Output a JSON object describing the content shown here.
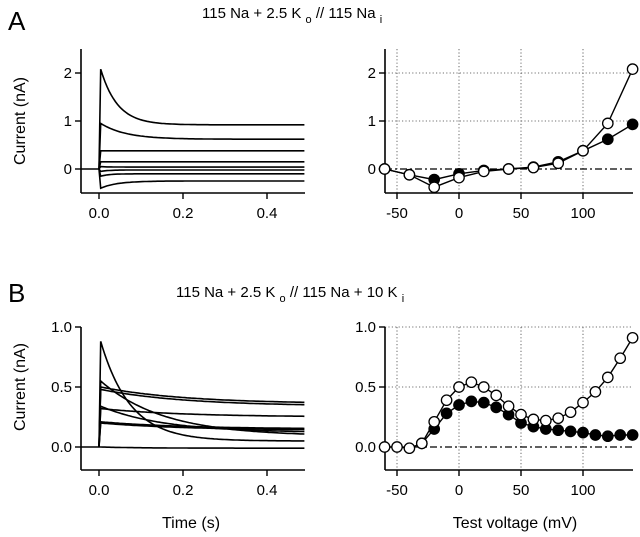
{
  "figure": {
    "panel_A": {
      "letter": "A",
      "title_parts": {
        "pre": "115 Na + 2.5 K",
        "sub1": "o",
        "mid": " // 115 Na",
        "sub2": "i"
      }
    },
    "panel_B": {
      "letter": "B",
      "title_parts": {
        "pre": "115 Na + 2.5 K",
        "sub1": "o",
        "mid": " // 115 Na + 10 K",
        "sub2": "i"
      }
    },
    "colors": {
      "ink": "#000000",
      "grid": "#555555",
      "open_fill": "#ffffff"
    }
  },
  "chart_data": [
    {
      "id": "A-left",
      "type": "line",
      "title": "",
      "xlabel": "",
      "ylabel": "Current (nA)",
      "xlim": [
        -0.04,
        0.49
      ],
      "ylim": [
        -0.5,
        2.5
      ],
      "xticks": [
        "0.0",
        "0.2",
        "0.4"
      ],
      "xtick_values": [
        0,
        0.2,
        0.4
      ],
      "yticks": [
        "0",
        "1",
        "2"
      ],
      "ytick_values": [
        0,
        1,
        2
      ],
      "grid": false,
      "description": "Current traces vs time (s) at several test voltages",
      "series": [
        {
          "name": "trace-1",
          "peak": 2.08,
          "steady": 0.92,
          "tau": 0.04
        },
        {
          "name": "trace-2",
          "peak": 0.95,
          "steady": 0.62,
          "tau": 0.06
        },
        {
          "name": "trace-3",
          "peak": 0.38,
          "steady": 0.38,
          "tau": 0.02
        },
        {
          "name": "trace-4",
          "peak": 0.15,
          "steady": 0.15,
          "tau": 0.02
        },
        {
          "name": "trace-5",
          "peak": 0.05,
          "steady": 0.04,
          "tau": 0.02
        },
        {
          "name": "trace-6",
          "peak": -0.05,
          "steady": -0.02,
          "tau": 0.02
        },
        {
          "name": "trace-7",
          "peak": -0.15,
          "steady": -0.1,
          "tau": 0.02
        },
        {
          "name": "trace-8",
          "peak": -0.4,
          "steady": -0.25,
          "tau": 0.04
        }
      ]
    },
    {
      "id": "A-right",
      "type": "line",
      "title": "",
      "xlabel": "",
      "ylabel": "",
      "xlim": [
        -60,
        140
      ],
      "ylim": [
        -0.5,
        2.5
      ],
      "xticks": [
        "-50",
        "0",
        "50",
        "100"
      ],
      "xtick_values": [
        -50,
        0,
        50,
        100
      ],
      "yticks": [
        "0",
        "1",
        "2"
      ],
      "ytick_values": [
        0,
        1,
        2
      ],
      "grid": true,
      "zero_line": "dash-dot",
      "series": [
        {
          "name": "filled",
          "marker": "filled-circle",
          "x": [
            -60,
            -40,
            -20,
            0,
            20,
            40,
            60,
            80,
            100,
            120,
            140
          ],
          "y": [
            0.0,
            -0.12,
            -0.22,
            -0.1,
            -0.03,
            0.0,
            0.04,
            0.15,
            0.38,
            0.62,
            0.93
          ]
        },
        {
          "name": "open",
          "marker": "open-circle",
          "x": [
            -60,
            -40,
            -20,
            0,
            20,
            40,
            60,
            80,
            100,
            120,
            140
          ],
          "y": [
            0.0,
            -0.12,
            -0.38,
            -0.18,
            -0.05,
            0.0,
            0.03,
            0.12,
            0.38,
            0.95,
            2.08
          ]
        }
      ]
    },
    {
      "id": "B-left",
      "type": "line",
      "title": "",
      "xlabel": "Time (s)",
      "ylabel": "Current (nA)",
      "xlim": [
        -0.04,
        0.49
      ],
      "ylim": [
        -0.2,
        1.0
      ],
      "xticks": [
        "0.0",
        "0.2",
        "0.4"
      ],
      "xtick_values": [
        0,
        0.2,
        0.4
      ],
      "yticks": [
        "0.0",
        "0.5",
        "1.0"
      ],
      "ytick_values": [
        0,
        0.5,
        1.0
      ],
      "grid": false,
      "description": "Current traces vs time (s) at several test voltages",
      "series": [
        {
          "name": "trace-1",
          "peak": 0.88,
          "steady": 0.05,
          "tau": 0.07
        },
        {
          "name": "trace-2",
          "peak": 0.55,
          "steady": 0.09,
          "tau": 0.15
        },
        {
          "name": "trace-3",
          "peak": 0.5,
          "steady": 0.36,
          "tau": 0.2
        },
        {
          "name": "trace-4",
          "peak": 0.48,
          "steady": 0.34,
          "tau": 0.2
        },
        {
          "name": "trace-5",
          "peak": 0.34,
          "steady": 0.12,
          "tau": 0.15
        },
        {
          "name": "trace-6",
          "peak": 0.32,
          "steady": 0.25,
          "tau": 0.2
        },
        {
          "name": "trace-7",
          "peak": 0.21,
          "steady": 0.15,
          "tau": 0.2
        },
        {
          "name": "trace-8",
          "peak": 0.2,
          "steady": 0.14,
          "tau": 0.2
        },
        {
          "name": "trace-9",
          "peak": 0.0,
          "steady": -0.01,
          "tau": 0.1
        }
      ]
    },
    {
      "id": "B-right",
      "type": "line",
      "title": "",
      "xlabel": "Test voltage (mV)",
      "ylabel": "",
      "xlim": [
        -60,
        140
      ],
      "ylim": [
        -0.2,
        1.0
      ],
      "xticks": [
        "-50",
        "0",
        "50",
        "100"
      ],
      "xtick_values": [
        -50,
        0,
        50,
        100
      ],
      "yticks": [
        "0.0",
        "0.5",
        "1.0"
      ],
      "ytick_values": [
        0,
        0.5,
        1.0
      ],
      "grid": true,
      "zero_line": "dash-dot",
      "series": [
        {
          "name": "filled",
          "marker": "filled-circle",
          "x": [
            -30,
            -20,
            -10,
            0,
            10,
            20,
            30,
            40,
            50,
            60,
            70,
            80,
            90,
            100,
            110,
            120,
            130,
            140
          ],
          "y": [
            0.03,
            0.15,
            0.28,
            0.35,
            0.38,
            0.37,
            0.33,
            0.27,
            0.2,
            0.17,
            0.15,
            0.14,
            0.13,
            0.12,
            0.1,
            0.09,
            0.1,
            0.1
          ]
        },
        {
          "name": "open",
          "marker": "open-circle",
          "x": [
            -60,
            -50,
            -40,
            -30,
            -20,
            -10,
            0,
            10,
            20,
            30,
            40,
            50,
            60,
            70,
            80,
            90,
            100,
            110,
            120,
            130,
            140
          ],
          "y": [
            0.0,
            0.0,
            -0.01,
            0.03,
            0.21,
            0.39,
            0.5,
            0.54,
            0.5,
            0.43,
            0.34,
            0.27,
            0.23,
            0.22,
            0.24,
            0.29,
            0.37,
            0.46,
            0.58,
            0.74,
            0.91
          ]
        }
      ]
    }
  ]
}
